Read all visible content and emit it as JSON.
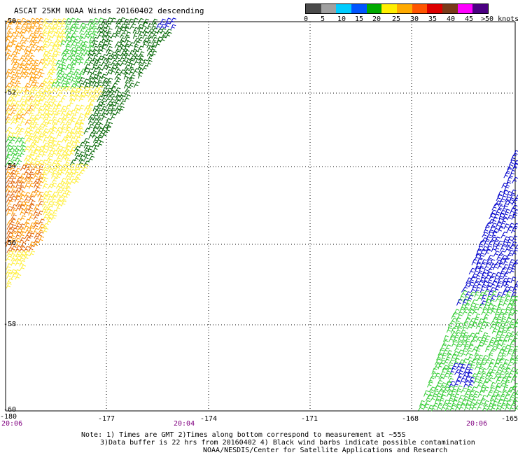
{
  "title": "ASCAT 25KM NOAA Winds 20160402 descending",
  "legend": {
    "labels": [
      "0",
      "5",
      "10",
      "15",
      "20",
      "25",
      "30",
      "35",
      "40",
      "45",
      ">50 knots"
    ],
    "colors": [
      "#4a4a4a",
      "#a0a0a0",
      "#00ccff",
      "#0055ff",
      "#00aa00",
      "#ffee00",
      "#ffaa00",
      "#ff5500",
      "#dd0000",
      "#7a3a1a",
      "#ff00ff",
      "#4b0082"
    ],
    "barb_colors": {
      "light_green": "#33cc33",
      "dark_green": "#006400",
      "blue": "#0000cc",
      "yellow": "#ffee33",
      "orange": "#ff9900",
      "dark_orange": "#e06000"
    }
  },
  "map": {
    "lat_labels": [
      "-50",
      "-52",
      "-54",
      "-56",
      "-58",
      "-60"
    ],
    "lon_labels": [
      "-180",
      "-177",
      "-174",
      "-171",
      "-168",
      "-165"
    ],
    "time_labels": [
      "20:06",
      "20:04",
      "20:06"
    ]
  },
  "notes": {
    "line1": "Note: 1) Times are GMT 2)Times along bottom correspond to measurement at ~55S",
    "line2": "3)Data buffer is 22 hrs from 20160402 4) Black wind barbs indicate possible contamination",
    "line3": "NOAA/NESDIS/Center for Satellite Applications and Research"
  }
}
